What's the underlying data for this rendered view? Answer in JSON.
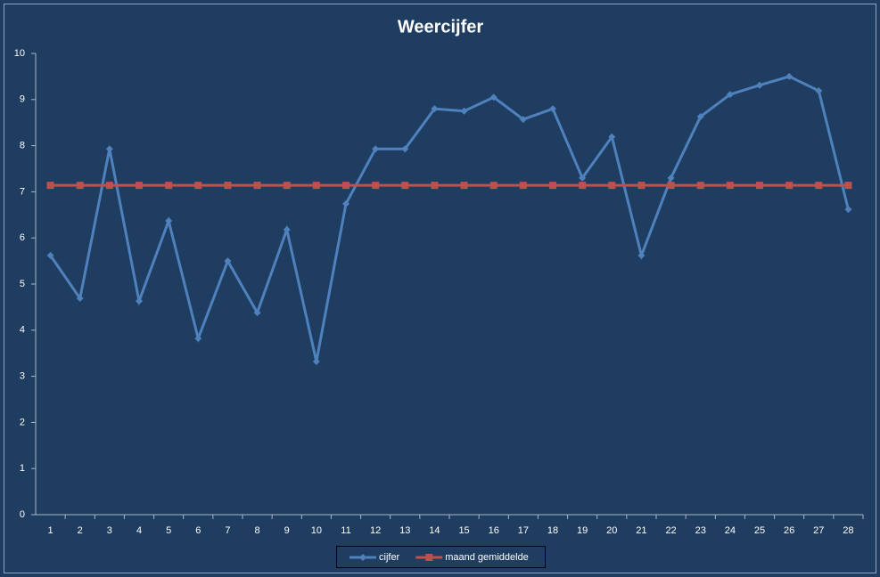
{
  "chart_data": {
    "type": "line",
    "title": "Weercijfer",
    "categories": [
      "1",
      "2",
      "3",
      "4",
      "5",
      "6",
      "7",
      "8",
      "9",
      "10",
      "11",
      "12",
      "13",
      "14",
      "15",
      "16",
      "17",
      "18",
      "19",
      "20",
      "21",
      "22",
      "23",
      "24",
      "25",
      "26",
      "27",
      "28"
    ],
    "series": [
      {
        "name": "cijfer",
        "color": "#4f81bd",
        "marker": "diamond",
        "values": [
          5.62,
          4.69,
          7.93,
          4.63,
          6.37,
          3.82,
          5.5,
          4.38,
          6.18,
          3.32,
          6.74,
          7.93,
          7.93,
          8.8,
          8.75,
          9.05,
          8.57,
          8.8,
          7.3,
          8.19,
          5.62,
          7.3,
          8.63,
          9.11,
          9.31,
          9.5,
          9.19,
          6.62
        ]
      },
      {
        "name": "maand gemiddelde",
        "color": "#c0504d",
        "marker": "square",
        "values": [
          7.14,
          7.14,
          7.14,
          7.14,
          7.14,
          7.14,
          7.14,
          7.14,
          7.14,
          7.14,
          7.14,
          7.14,
          7.14,
          7.14,
          7.14,
          7.14,
          7.14,
          7.14,
          7.14,
          7.14,
          7.14,
          7.14,
          7.14,
          7.14,
          7.14,
          7.14,
          7.14,
          7.14
        ]
      }
    ],
    "ylim": [
      0,
      10
    ],
    "yticks": [
      0,
      1,
      2,
      3,
      4,
      5,
      6,
      7,
      8,
      9,
      10
    ],
    "grid": false,
    "legend": "bottom"
  }
}
